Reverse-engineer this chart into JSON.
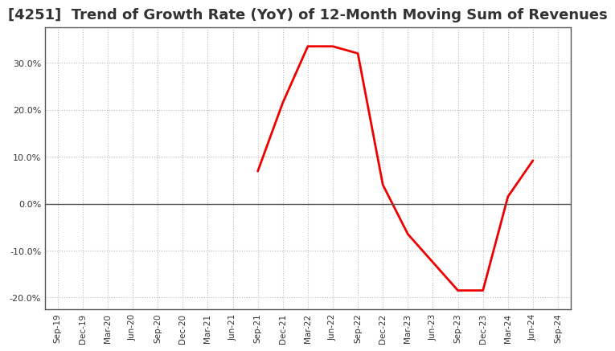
{
  "title": "[4251]  Trend of Growth Rate (YoY) of 12-Month Moving Sum of Revenues",
  "title_fontsize": 13,
  "title_color": "#333333",
  "line_color": "#EE0000",
  "line_width": 2.0,
  "background_color": "#FFFFFF",
  "plot_bg_color": "#FFFFFF",
  "ylim": [
    -0.225,
    0.375
  ],
  "yticks": [
    -0.2,
    -0.1,
    0.0,
    0.1,
    0.2,
    0.3
  ],
  "grid_color": "#BBBBBB",
  "zero_line_color": "#555555",
  "spine_color": "#555555",
  "x_labels": [
    "Sep-19",
    "Dec-19",
    "Mar-20",
    "Jun-20",
    "Sep-20",
    "Dec-20",
    "Mar-21",
    "Jun-21",
    "Sep-21",
    "Dec-21",
    "Mar-22",
    "Jun-22",
    "Sep-22",
    "Dec-22",
    "Mar-23",
    "Jun-23",
    "Sep-23",
    "Dec-23",
    "Mar-24",
    "Jun-24",
    "Sep-24"
  ],
  "data_x_indices": [
    8,
    9,
    10,
    11,
    12,
    13,
    14,
    15,
    16,
    17,
    18,
    19
  ],
  "data_y": [
    0.069,
    0.215,
    0.335,
    0.335,
    0.32,
    0.04,
    -0.065,
    -0.125,
    -0.185,
    -0.185,
    0.015,
    0.092
  ]
}
